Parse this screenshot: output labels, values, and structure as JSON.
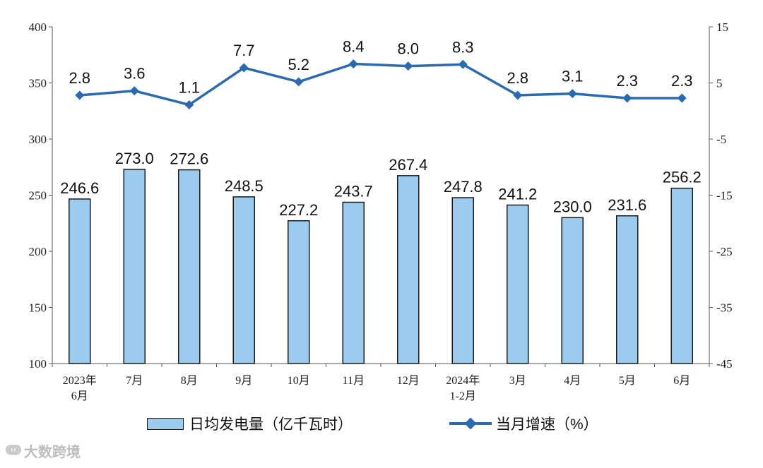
{
  "chart_data": {
    "type": "bar+line",
    "categories": [
      [
        "2023年",
        "6月"
      ],
      [
        "7月"
      ],
      [
        "8月"
      ],
      [
        "9月"
      ],
      [
        "10月"
      ],
      [
        "11月"
      ],
      [
        "12月"
      ],
      [
        "2024年",
        "1-2月"
      ],
      [
        "3月"
      ],
      [
        "4月"
      ],
      [
        "5月"
      ],
      [
        "6月"
      ]
    ],
    "series": [
      {
        "name": "日均发电量（亿千瓦时）",
        "type": "bar",
        "axis": "left",
        "values": [
          246.6,
          273.0,
          272.6,
          248.5,
          227.2,
          243.7,
          267.4,
          247.8,
          241.2,
          230.0,
          231.6,
          256.2
        ],
        "labels": [
          "246.6",
          "273.0",
          "272.6",
          "248.5",
          "227.2",
          "243.7",
          "267.4",
          "247.8",
          "241.2",
          "230.0",
          "231.6",
          "256.2"
        ],
        "color": "#9ccbf0"
      },
      {
        "name": "当月增速（%）",
        "type": "line",
        "axis": "right",
        "values": [
          2.8,
          3.6,
          1.1,
          7.7,
          5.2,
          8.4,
          8.0,
          8.3,
          2.8,
          3.1,
          2.3,
          2.3
        ],
        "labels": [
          "2.8",
          "3.6",
          "1.1",
          "7.7",
          "5.2",
          "8.4",
          "8.0",
          "8.3",
          "2.8",
          "3.1",
          "2.3",
          "2.3"
        ],
        "color": "#2a6ab0"
      }
    ],
    "y_left": {
      "range": [
        100,
        400
      ],
      "ticks": [
        "100",
        "150",
        "200",
        "250",
        "300",
        "350",
        "400"
      ]
    },
    "y_right": {
      "range": [
        -45,
        15
      ],
      "ticks": [
        "-45",
        "-35",
        "-25",
        "-15",
        "-5",
        "5",
        "15"
      ]
    },
    "grid": false,
    "legend_position": "bottom"
  },
  "legend": {
    "bar_label": "日均发电量（亿千瓦时）",
    "line_label": "当月增速（%）"
  },
  "watermark": {
    "text": "大数跨境"
  }
}
